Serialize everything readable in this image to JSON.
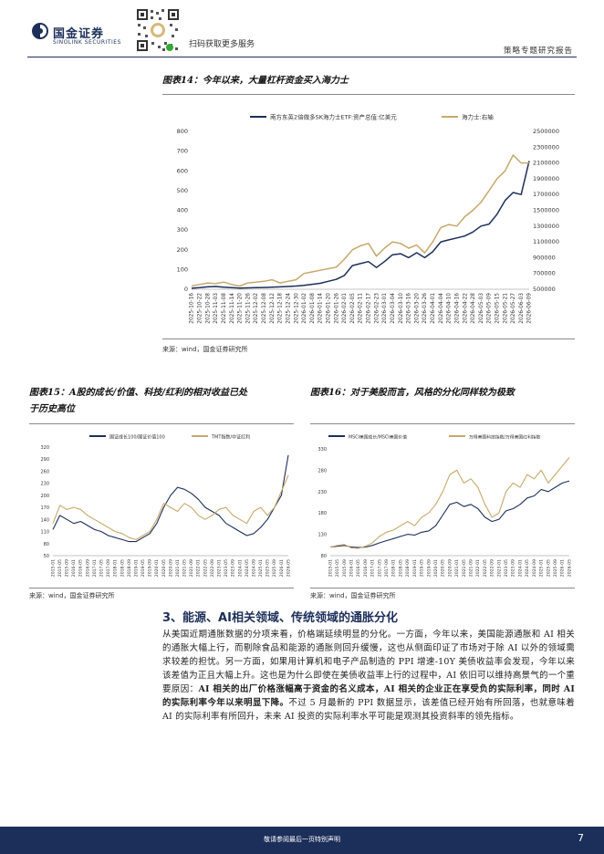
{
  "header": {
    "brand_cn": "国金证券",
    "brand_en": "SINOLINK SECURITIES",
    "scan_text": "扫码获取更多服务",
    "report_type": "策略专题研究报告"
  },
  "fig14": {
    "title": "图表14：今年以来，大量杠杆资金买入海力士",
    "source": "来源：wind，国金证券研究所",
    "legend_left": "南方东英2倍做多SK海力士ETF:资产总值:亿美元",
    "legend_right": "海力士:右轴"
  },
  "fig15": {
    "title_line1": "图表15：A股的成长/价值、科技/红利的相对收益已处",
    "title_line2": "于历史高位",
    "source": "来源：wind，国金证券研究所",
    "legend_a": "国证成长100/国证价值100",
    "legend_b": "TMT指数/中证红利"
  },
  "fig16": {
    "title": "图表16：对于美股而言，风格的分化同样较为极致",
    "source": "来源：wind，国金证券研究所",
    "legend_a": "MSCI美国成长/MSCI美国价值",
    "legend_b": "万得美国科技指数/万得美国红利指数"
  },
  "section": {
    "title": "3、能源、AI相关领域、传统领域的通胀分化",
    "p1": "从美国近期通胀数据的分项来看，价格端延续明显的分化。一方面，今年以来，美国能源通胀和 AI 相关的通胀大幅上行，而剔除食品和能源的通胀则回升缓慢，这也从侧面印证了市场对于除 AI 以外的领域需求较差的担忧。另一方面，如果用计算机和电子产品制造的 PPI 增速-10Y 美债收益率会发现，今年以来该差值为正且大幅上升。这也是为什么即使在美债收益率上行的过程中，AI 依旧可以维持高景气的一个重要原因：",
    "p1_bold": "AI 相关的出厂价格涨幅高于资金的名义成本，AI 相关的企业正在享受负的实际利率，同时 AI 的实际利率今年以来明显下降。",
    "p1_tail": "不过 5 月最新的 PPI 数据显示，该差值已经开始有所回落，也就意味着 AI 的实际利率有所回升，未来 AI 投资的实际利率水平可能是观测其投资斜率的领先指标。"
  },
  "footer": {
    "disclaimer": "敬请参阅最后一页特别声明",
    "page": "7"
  },
  "colors": {
    "navy": "#1c2f5a",
    "gold": "#c8a86b"
  },
  "chart_data": [
    {
      "type": "line",
      "title": "图表14：今年以来，大量杠杆资金买入海力士",
      "x": [
        "2025-10-16",
        "2025-10-22",
        "2025-10-28",
        "2025-11-03",
        "2025-11-08",
        "2025-11-14",
        "2025-11-20",
        "2025-11-26",
        "2025-12-02",
        "2025-12-08",
        "2025-12-12",
        "2025-12-18",
        "2025-12-24",
        "2025-12-30",
        "2026-01-02",
        "2026-01-08",
        "2026-01-14",
        "2026-01-20",
        "2026-01-26",
        "2026-02-01",
        "2026-02-05",
        "2026-02-11",
        "2026-02-17",
        "2026-02-23",
        "2026-03-01",
        "2026-03-04",
        "2026-03-10",
        "2026-03-16",
        "2026-03-20",
        "2026-03-26",
        "2026-04-01",
        "2026-04-04",
        "2026-04-10",
        "2026-04-16",
        "2026-04-22",
        "2026-04-28",
        "2026-05-03",
        "2026-05-09",
        "2026-05-15",
        "2026-05-21",
        "2026-05-27",
        "2026-06-03",
        "2026-06-09"
      ],
      "series": [
        {
          "name": "南方东英2倍做多SK海力士ETF:资产总值:亿美元",
          "axis": "left",
          "values": [
            5,
            8,
            12,
            14,
            10,
            8,
            6,
            7,
            8,
            9,
            10,
            12,
            14,
            16,
            20,
            25,
            30,
            40,
            50,
            70,
            120,
            130,
            140,
            110,
            140,
            175,
            180,
            160,
            185,
            160,
            190,
            240,
            250,
            260,
            270,
            290,
            320,
            330,
            380,
            450,
            490,
            480,
            650
          ]
        },
        {
          "name": "海力士:右轴",
          "axis": "right",
          "values": [
            540000,
            560000,
            580000,
            570000,
            590000,
            560000,
            540000,
            580000,
            590000,
            600000,
            620000,
            580000,
            600000,
            620000,
            700000,
            720000,
            740000,
            760000,
            780000,
            880000,
            1000000,
            1050000,
            1080000,
            920000,
            1020000,
            1100000,
            1080000,
            1020000,
            1060000,
            960000,
            1100000,
            1280000,
            1320000,
            1300000,
            1420000,
            1500000,
            1600000,
            1750000,
            1900000,
            2000000,
            2200000,
            2100000,
            2100000
          ]
        }
      ],
      "y_left": {
        "ylim": [
          0,
          800
        ],
        "ticks": [
          0,
          100,
          200,
          300,
          400,
          500,
          600,
          700,
          800
        ]
      },
      "y_right": {
        "ylim": [
          500000,
          2500000
        ],
        "ticks": [
          500000,
          700000,
          900000,
          1100000,
          1300000,
          1500000,
          1700000,
          1900000,
          2100000,
          2300000,
          2500000
        ]
      },
      "legend": "top",
      "grid": false
    },
    {
      "type": "line",
      "title": "图表15：A股的成长/价值、科技/红利的相对收益已处于历史高位",
      "x": [
        "2015-01",
        "2015-05",
        "2015-09",
        "2016-01",
        "2016-05",
        "2016-09",
        "2017-01",
        "2017-05",
        "2017-09",
        "2018-01",
        "2018-05",
        "2018-09",
        "2019-01",
        "2019-05",
        "2019-09",
        "2020-01",
        "2020-05",
        "2020-09",
        "2021-01",
        "2021-05",
        "2021-09",
        "2022-01",
        "2022-05",
        "2022-09",
        "2023-01",
        "2023-05",
        "2023-09",
        "2024-01",
        "2024-05",
        "2024-09",
        "2025-01",
        "2025-05",
        "2025-09",
        "2026-01",
        "2026-05"
      ],
      "series": [
        {
          "name": "国证成长100/国证价值100",
          "values": [
            115,
            150,
            140,
            130,
            135,
            125,
            115,
            110,
            100,
            95,
            90,
            85,
            85,
            95,
            105,
            130,
            170,
            200,
            220,
            215,
            205,
            190,
            170,
            160,
            150,
            130,
            120,
            110,
            100,
            105,
            120,
            140,
            170,
            200,
            300
          ]
        },
        {
          "name": "TMT指数/中证红利",
          "values": [
            130,
            175,
            165,
            170,
            165,
            150,
            140,
            130,
            120,
            110,
            105,
            95,
            90,
            100,
            110,
            140,
            180,
            170,
            160,
            180,
            170,
            150,
            140,
            150,
            165,
            170,
            150,
            140,
            130,
            160,
            170,
            150,
            170,
            210,
            250
          ]
        }
      ],
      "ylim": [
        50,
        320
      ],
      "ticks": [
        50,
        80,
        110,
        140,
        170,
        200,
        230,
        260,
        290,
        320
      ],
      "legend": "top",
      "grid": false
    },
    {
      "type": "line",
      "title": "图表16：对于美股而言，风格的分化同样较为极致",
      "x": [
        "2015-01",
        "2015-05",
        "2015-09",
        "2016-01",
        "2016-05",
        "2016-09",
        "2017-01",
        "2017-05",
        "2017-09",
        "2018-01",
        "2018-05",
        "2018-09",
        "2019-01",
        "2019-05",
        "2019-09",
        "2020-01",
        "2020-05",
        "2020-09",
        "2021-01",
        "2021-05",
        "2021-09",
        "2022-01",
        "2022-05",
        "2022-09",
        "2023-01",
        "2023-05",
        "2023-09",
        "2024-01",
        "2024-05",
        "2024-09",
        "2025-01",
        "2025-05",
        "2025-09",
        "2026-01",
        "2026-05"
      ],
      "series": [
        {
          "name": "MSCI美国成长/MSCI美国价值",
          "values": [
            100,
            102,
            104,
            100,
            99,
            100,
            104,
            110,
            115,
            120,
            125,
            130,
            128,
            135,
            138,
            150,
            175,
            200,
            205,
            195,
            200,
            190,
            170,
            160,
            165,
            185,
            190,
            200,
            215,
            220,
            235,
            230,
            240,
            250,
            255
          ]
        },
        {
          "name": "万得美国科技指数/万得美国红利指数",
          "values": [
            100,
            104,
            106,
            98,
            97,
            102,
            110,
            125,
            135,
            140,
            150,
            160,
            150,
            170,
            180,
            200,
            230,
            270,
            280,
            250,
            260,
            240,
            200,
            170,
            180,
            230,
            250,
            240,
            270,
            260,
            280,
            250,
            270,
            290,
            310
          ]
        }
      ],
      "ylim": [
        80,
        330
      ],
      "ticks": [
        80,
        130,
        180,
        230,
        280,
        330
      ],
      "legend": "top",
      "grid": false
    }
  ]
}
